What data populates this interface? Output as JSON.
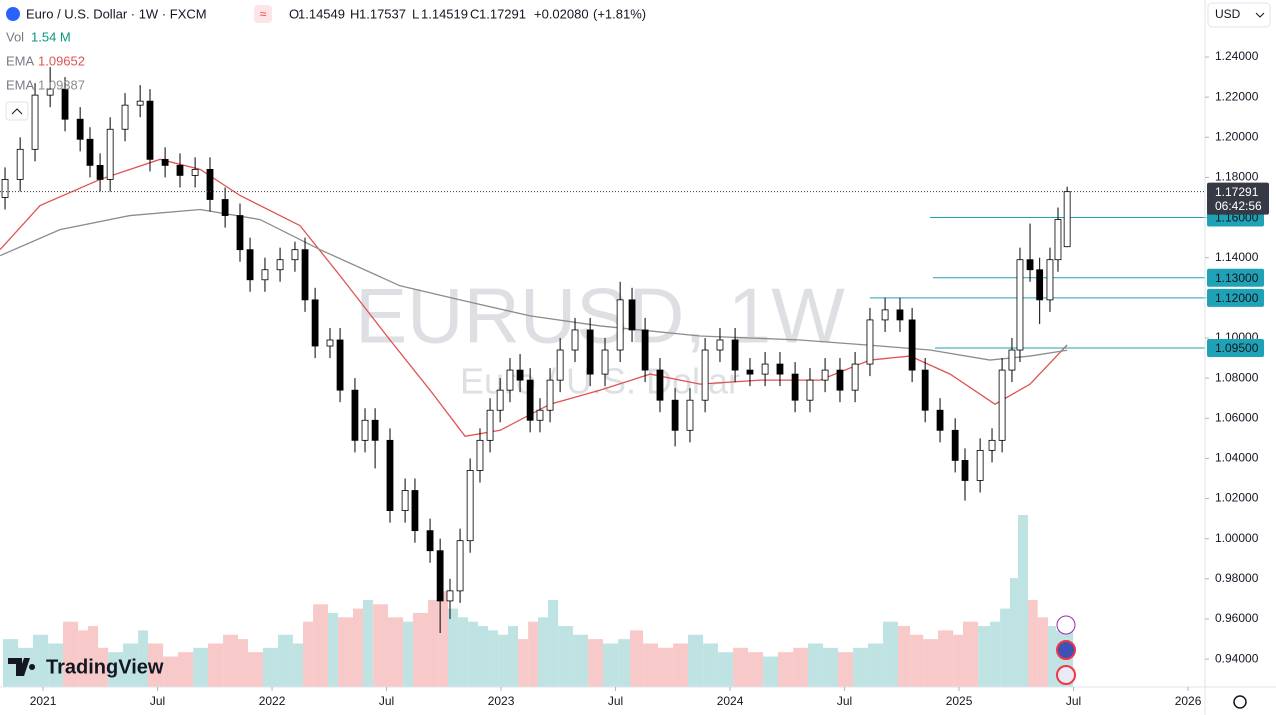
{
  "chart_data": {
    "type": "candlestick",
    "header": {
      "symbol": "Euro / U.S. Dollar · 1W · FXCM",
      "ohlc_letters": [
        "O",
        "H",
        "L",
        "C"
      ],
      "change": {
        "value": 0.0208,
        "label": "+0.02080"
      },
      "change_pct": {
        "value": 1.81,
        "label": "(+1.81%)"
      },
      "volume_name": "Vol",
      "volume_legend": "1.54 M",
      "currency": "USD",
      "countdown": "06:42:56"
    },
    "watermark": {
      "symbol": "EURUSD, 1W",
      "description": "Euro / U.S. Dollar"
    },
    "brand": "TradingView",
    "xlim": [
      2020.812,
      2026.074
    ],
    "xticks": [
      2021,
      {
        "value": 2021.5,
        "label": "Jul"
      },
      2022,
      {
        "value": 2022.5,
        "label": "Jul"
      },
      2023,
      {
        "value": 2023.5,
        "label": "Jul"
      },
      2024,
      {
        "value": 2024.5,
        "label": "Jul"
      },
      2025,
      {
        "value": 2025.5,
        "label": "Jul"
      },
      2026
    ],
    "ylim": [
      0.9261,
      1.2684
    ],
    "yticks": [
      {
        "value": 0.94,
        "label": "0.94000"
      },
      {
        "value": 0.96,
        "label": "0.96000"
      },
      {
        "value": 0.98,
        "label": "0.98000"
      },
      {
        "value": 1.0,
        "label": "1.00000"
      },
      {
        "value": 1.02,
        "label": "1.02000"
      },
      {
        "value": 1.04,
        "label": "1.04000"
      },
      {
        "value": 1.06,
        "label": "1.06000"
      },
      {
        "value": 1.08,
        "label": "1.08000"
      },
      {
        "value": 1.1,
        "label": "1.10000"
      },
      {
        "value": 1.12,
        "label": "1.12000"
      },
      {
        "value": 1.14,
        "label": "1.14000"
      },
      {
        "value": 1.16,
        "label": "1.16000"
      },
      {
        "value": 1.18,
        "label": "1.18000"
      },
      {
        "value": 1.2,
        "label": "1.20000"
      },
      {
        "value": 1.22,
        "label": "1.22000"
      },
      {
        "value": 1.24,
        "label": "1.24000"
      }
    ],
    "up_color": "#ffffff",
    "down_color": "#000000",
    "x": [
      2020.834,
      2020.9,
      2020.965,
      2021.031,
      2021.096,
      2021.162,
      2021.205,
      2021.249,
      2021.293,
      2021.358,
      2021.424,
      2021.467,
      2021.533,
      2021.598,
      2021.664,
      2021.729,
      2021.795,
      2021.86,
      2021.904,
      2021.969,
      2022.035,
      2022.1,
      2022.144,
      2022.188,
      2022.253,
      2022.297,
      2022.362,
      2022.406,
      2022.45,
      2022.515,
      2022.581,
      2022.624,
      2022.69,
      2022.734,
      2022.777,
      2022.821,
      2022.865,
      2022.908,
      2022.952,
      2022.996,
      2023.039,
      2023.083,
      2023.127,
      2023.17,
      2023.214,
      2023.258,
      2023.323,
      2023.389,
      2023.454,
      2023.52,
      2023.572,
      2023.629,
      2023.694,
      2023.76,
      2023.825,
      2023.891,
      2023.956,
      2024.022,
      2024.087,
      2024.153,
      2024.218,
      2024.284,
      2024.349,
      2024.415,
      2024.48,
      2024.546,
      2024.611,
      2024.677,
      2024.742,
      2024.795,
      2024.852,
      2024.917,
      2024.983,
      2025.026,
      2025.092,
      2025.144,
      2025.188,
      2025.231,
      2025.266,
      2025.31,
      2025.352,
      2025.397,
      2025.432,
      2025.472
    ],
    "open": [
      1.17,
      1.179,
      1.194,
      1.221,
      1.224,
      1.209,
      1.199,
      1.186,
      1.179,
      1.204,
      1.216,
      1.218,
      1.189,
      1.186,
      1.181,
      1.184,
      1.169,
      1.161,
      1.144,
      1.129,
      1.134,
      1.139,
      1.144,
      1.119,
      1.096,
      1.099,
      1.074,
      1.049,
      1.059,
      1.049,
      1.014,
      1.024,
      1.004,
      0.994,
      0.969,
      0.974,
      0.999,
      1.034,
      1.049,
      1.064,
      1.074,
      1.084,
      1.079,
      1.059,
      1.064,
      1.079,
      1.094,
      1.104,
      1.082,
      1.094,
      1.119,
      1.104,
      1.084,
      1.069,
      1.054,
      1.069,
      1.094,
      1.099,
      1.084,
      1.082,
      1.087,
      1.082,
      1.069,
      1.079,
      1.084,
      1.074,
      1.087,
      1.109,
      1.114,
      1.109,
      1.084,
      1.064,
      1.054,
      1.039,
      1.029,
      1.044,
      1.049,
      1.084,
      1.094,
      1.139,
      1.134,
      1.119,
      1.139,
      1.14549
    ],
    "high": [
      1.185,
      1.2,
      1.227,
      1.235,
      1.23,
      1.215,
      1.205,
      1.192,
      1.21,
      1.222,
      1.226,
      1.224,
      1.195,
      1.192,
      1.19,
      1.19,
      1.175,
      1.167,
      1.15,
      1.14,
      1.145,
      1.148,
      1.15,
      1.125,
      1.105,
      1.105,
      1.08,
      1.065,
      1.065,
      1.055,
      1.03,
      1.03,
      1.01,
      1.0,
      0.98,
      1.005,
      1.04,
      1.055,
      1.07,
      1.08,
      1.09,
      1.092,
      1.085,
      1.07,
      1.085,
      1.1,
      1.11,
      1.11,
      1.1,
      1.128,
      1.125,
      1.11,
      1.09,
      1.075,
      1.075,
      1.1,
      1.105,
      1.105,
      1.09,
      1.093,
      1.093,
      1.088,
      1.085,
      1.09,
      1.09,
      1.093,
      1.115,
      1.12,
      1.12,
      1.115,
      1.09,
      1.07,
      1.06,
      1.045,
      1.05,
      1.055,
      1.09,
      1.1,
      1.145,
      1.157,
      1.14,
      1.145,
      1.165,
      1.17537
    ],
    "low": [
      1.164,
      1.173,
      1.188,
      1.215,
      1.203,
      1.193,
      1.18,
      1.173,
      1.173,
      1.198,
      1.21,
      1.183,
      1.18,
      1.175,
      1.175,
      1.163,
      1.155,
      1.138,
      1.123,
      1.123,
      1.128,
      1.133,
      1.113,
      1.09,
      1.09,
      1.068,
      1.043,
      1.043,
      1.035,
      1.008,
      1.008,
      0.998,
      0.988,
      0.953,
      0.96,
      0.968,
      0.993,
      1.028,
      1.043,
      1.058,
      1.068,
      1.073,
      1.053,
      1.053,
      1.058,
      1.073,
      1.088,
      1.076,
      1.076,
      1.088,
      1.098,
      1.078,
      1.063,
      1.046,
      1.048,
      1.063,
      1.088,
      1.078,
      1.076,
      1.076,
      1.076,
      1.063,
      1.063,
      1.073,
      1.068,
      1.068,
      1.081,
      1.103,
      1.103,
      1.078,
      1.058,
      1.048,
      1.033,
      1.019,
      1.023,
      1.038,
      1.043,
      1.078,
      1.088,
      1.128,
      1.107,
      1.113,
      1.133,
      1.14519
    ],
    "close": [
      1.179,
      1.194,
      1.221,
      1.224,
      1.209,
      1.199,
      1.186,
      1.179,
      1.204,
      1.216,
      1.218,
      1.189,
      1.186,
      1.181,
      1.184,
      1.169,
      1.161,
      1.144,
      1.129,
      1.134,
      1.139,
      1.144,
      1.119,
      1.096,
      1.099,
      1.074,
      1.049,
      1.059,
      1.049,
      1.014,
      1.024,
      1.004,
      0.994,
      0.969,
      0.974,
      0.999,
      1.034,
      1.049,
      1.064,
      1.074,
      1.084,
      1.079,
      1.059,
      1.064,
      1.079,
      1.094,
      1.104,
      1.082,
      1.094,
      1.119,
      1.104,
      1.084,
      1.069,
      1.054,
      1.069,
      1.094,
      1.099,
      1.084,
      1.082,
      1.087,
      1.082,
      1.069,
      1.079,
      1.084,
      1.074,
      1.087,
      1.109,
      1.114,
      1.109,
      1.084,
      1.064,
      1.054,
      1.039,
      1.029,
      1.044,
      1.049,
      1.084,
      1.094,
      1.139,
      1.134,
      1.119,
      1.139,
      1.159,
      1.17291
    ],
    "volume": [
      1.1,
      0.9,
      1.2,
      1.0,
      1.5,
      1.3,
      1.4,
      0.9,
      0.8,
      1.0,
      1.3,
      1.0,
      0.7,
      0.8,
      0.9,
      1.0,
      1.2,
      1.1,
      0.8,
      0.9,
      1.2,
      1.0,
      1.5,
      1.9,
      1.7,
      1.6,
      1.8,
      2.0,
      1.9,
      1.6,
      1.5,
      1.7,
      2.0,
      2.2,
      1.8,
      1.6,
      1.5,
      1.4,
      1.3,
      1.2,
      1.4,
      1.1,
      1.5,
      1.6,
      2.0,
      1.4,
      1.2,
      1.1,
      1.0,
      1.1,
      1.3,
      1.0,
      0.9,
      1.0,
      1.2,
      1.0,
      0.8,
      0.9,
      0.8,
      0.7,
      0.8,
      0.9,
      1.0,
      0.9,
      0.8,
      0.9,
      1.0,
      1.5,
      1.4,
      1.2,
      1.1,
      1.3,
      1.2,
      1.5,
      1.4,
      1.5,
      1.8,
      2.5,
      3.95,
      2.0,
      1.6,
      1.4,
      1.3,
      1.54
    ],
    "volume_up_color": "#bfe3e3",
    "volume_down_color": "#f8c9c9",
    "series": [
      {
        "name": "EMA",
        "color": "#e05252",
        "x": [
          2020.812,
          2020.987,
          2021.249,
          2021.511,
          2021.686,
          2021.86,
          2022.122,
          2022.297,
          2022.515,
          2022.69,
          2022.843,
          2022.996,
          2023.214,
          2023.433,
          2023.651,
          2023.869,
          2024.131,
          2024.393,
          2024.611,
          2024.786,
          2024.961,
          2025.157,
          2025.31,
          2025.472
        ],
        "values": [
          1.144,
          1.166,
          1.179,
          1.189,
          1.184,
          1.171,
          1.156,
          1.131,
          1.099,
          1.074,
          1.051,
          1.054,
          1.067,
          1.074,
          1.082,
          1.077,
          1.079,
          1.079,
          1.089,
          1.091,
          1.082,
          1.067,
          1.077,
          1.09652
        ]
      },
      {
        "name": "EMA",
        "color": "#8c8c8c",
        "x": [
          2020.812,
          2021.074,
          2021.38,
          2021.686,
          2021.948,
          2022.21,
          2022.559,
          2022.821,
          2023.127,
          2023.433,
          2023.869,
          2024.306,
          2024.655,
          2024.873,
          2025.135,
          2025.31,
          2025.472
        ],
        "values": [
          1.141,
          1.154,
          1.161,
          1.164,
          1.159,
          1.144,
          1.126,
          1.119,
          1.111,
          1.106,
          1.101,
          1.099,
          1.096,
          1.094,
          1.089,
          1.091,
          1.09387
        ]
      }
    ],
    "levels": [
      {
        "value": 1.16,
        "label": "1.16000",
        "start": 2024.873
      },
      {
        "value": 1.13,
        "label": "1.13000",
        "start": 2024.886
      },
      {
        "value": 1.12,
        "label": "1.12000",
        "start": 2024.611
      },
      {
        "value": 1.095,
        "label": "1.09500",
        "start": 2024.895
      }
    ],
    "level_color": "#1fa2b5"
  }
}
